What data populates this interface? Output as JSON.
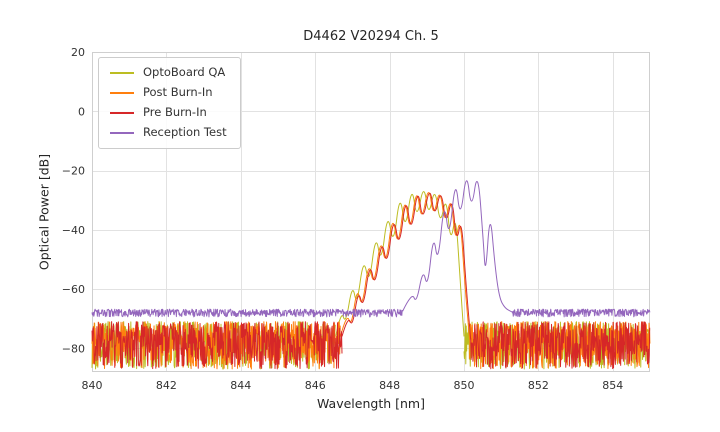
{
  "chart_data": {
    "type": "line",
    "title": "D4462 V20294 Ch. 5",
    "xlabel": "Wavelength [nm]",
    "ylabel": "Optical Power [dB]",
    "xlim": [
      840,
      855
    ],
    "ylim": [
      -88,
      20
    ],
    "xticks": [
      840,
      842,
      844,
      846,
      848,
      850,
      852,
      854
    ],
    "yticks": [
      -80,
      -60,
      -40,
      -20,
      0,
      20
    ],
    "grid": true,
    "legend_position": "upper left",
    "series": [
      {
        "name": "OptoBoard QA",
        "color": "#bcbd22",
        "noise_top": -71,
        "noise_depth": 16,
        "noise_regions": [
          [
            840,
            846.55
          ],
          [
            850.0,
            855
          ]
        ],
        "spectrum": [
          [
            846.55,
            -76
          ],
          [
            846.7,
            -67
          ],
          [
            846.82,
            -72
          ],
          [
            847.0,
            -58
          ],
          [
            847.12,
            -66
          ],
          [
            847.3,
            -49
          ],
          [
            847.45,
            -59
          ],
          [
            847.63,
            -41
          ],
          [
            847.77,
            -52
          ],
          [
            847.95,
            -33.5
          ],
          [
            848.1,
            -46
          ],
          [
            848.28,
            -27
          ],
          [
            848.42,
            -41
          ],
          [
            848.6,
            -24.5
          ],
          [
            848.73,
            -37
          ],
          [
            848.92,
            -24
          ],
          [
            849.05,
            -36
          ],
          [
            849.22,
            -25
          ],
          [
            849.36,
            -39
          ],
          [
            849.52,
            -28
          ],
          [
            849.64,
            -45
          ],
          [
            849.78,
            -34
          ],
          [
            849.9,
            -58
          ],
          [
            850.0,
            -76
          ]
        ]
      },
      {
        "name": "Post Burn-In",
        "color": "#ff7f0e",
        "noise_top": -71,
        "noise_depth": 16,
        "noise_regions": [
          [
            840,
            846.68
          ],
          [
            850.15,
            855
          ]
        ],
        "spectrum": [
          [
            846.68,
            -76
          ],
          [
            846.85,
            -68
          ],
          [
            846.97,
            -73
          ],
          [
            847.13,
            -59
          ],
          [
            847.26,
            -67
          ],
          [
            847.44,
            -50
          ],
          [
            847.58,
            -60
          ],
          [
            847.76,
            -42
          ],
          [
            847.9,
            -53
          ],
          [
            848.08,
            -34
          ],
          [
            848.23,
            -47
          ],
          [
            848.41,
            -27.5
          ],
          [
            848.55,
            -42
          ],
          [
            848.73,
            -24.8
          ],
          [
            848.86,
            -38
          ],
          [
            849.05,
            -24.2
          ],
          [
            849.18,
            -36.5
          ],
          [
            849.35,
            -25.2
          ],
          [
            849.49,
            -39
          ],
          [
            849.65,
            -27.8
          ],
          [
            849.77,
            -45
          ],
          [
            849.9,
            -35
          ],
          [
            850.02,
            -58
          ],
          [
            850.15,
            -77
          ]
        ]
      },
      {
        "name": "Pre Burn-In",
        "color": "#d62728",
        "noise_top": -71,
        "noise_depth": 16,
        "noise_regions": [
          [
            840,
            846.72
          ],
          [
            850.18,
            855
          ]
        ],
        "spectrum": [
          [
            846.72,
            -76
          ],
          [
            846.88,
            -69
          ],
          [
            847.0,
            -73
          ],
          [
            847.16,
            -60
          ],
          [
            847.29,
            -67
          ],
          [
            847.47,
            -50.5
          ],
          [
            847.61,
            -60
          ],
          [
            847.79,
            -42.5
          ],
          [
            847.93,
            -53
          ],
          [
            848.11,
            -34.5
          ],
          [
            848.26,
            -47
          ],
          [
            848.44,
            -27.8
          ],
          [
            848.58,
            -42
          ],
          [
            848.76,
            -25
          ],
          [
            848.89,
            -38
          ],
          [
            849.08,
            -24.5
          ],
          [
            849.21,
            -36.5
          ],
          [
            849.38,
            -25.5
          ],
          [
            849.52,
            -39
          ],
          [
            849.68,
            -28
          ],
          [
            849.8,
            -45
          ],
          [
            849.93,
            -35.5
          ],
          [
            850.05,
            -58
          ],
          [
            850.18,
            -77
          ]
        ]
      },
      {
        "name": "Reception Test",
        "color": "#9467bd",
        "noise_top": -66.8,
        "noise_depth": 2.6,
        "noise_regions": [
          [
            840,
            848.35
          ],
          [
            851.3,
            855
          ]
        ],
        "spectrum": [
          [
            848.35,
            -67.5
          ],
          [
            848.6,
            -61
          ],
          [
            848.72,
            -65
          ],
          [
            848.9,
            -53
          ],
          [
            849.02,
            -60
          ],
          [
            849.18,
            -41
          ],
          [
            849.3,
            -52
          ],
          [
            849.47,
            -29.5
          ],
          [
            849.6,
            -44
          ],
          [
            849.77,
            -22
          ],
          [
            849.9,
            -37
          ],
          [
            850.07,
            -19.5
          ],
          [
            850.2,
            -34
          ],
          [
            850.37,
            -19
          ],
          [
            850.52,
            -44
          ],
          [
            850.58,
            -56
          ],
          [
            850.7,
            -33
          ],
          [
            850.83,
            -52
          ],
          [
            850.95,
            -63
          ],
          [
            851.1,
            -66.5
          ],
          [
            851.3,
            -67.8
          ]
        ]
      }
    ]
  }
}
